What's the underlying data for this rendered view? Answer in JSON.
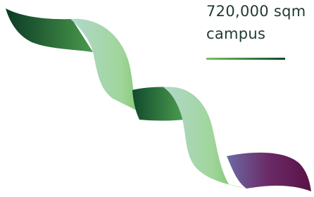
{
  "headline": "720,000 sqm campus"
}
